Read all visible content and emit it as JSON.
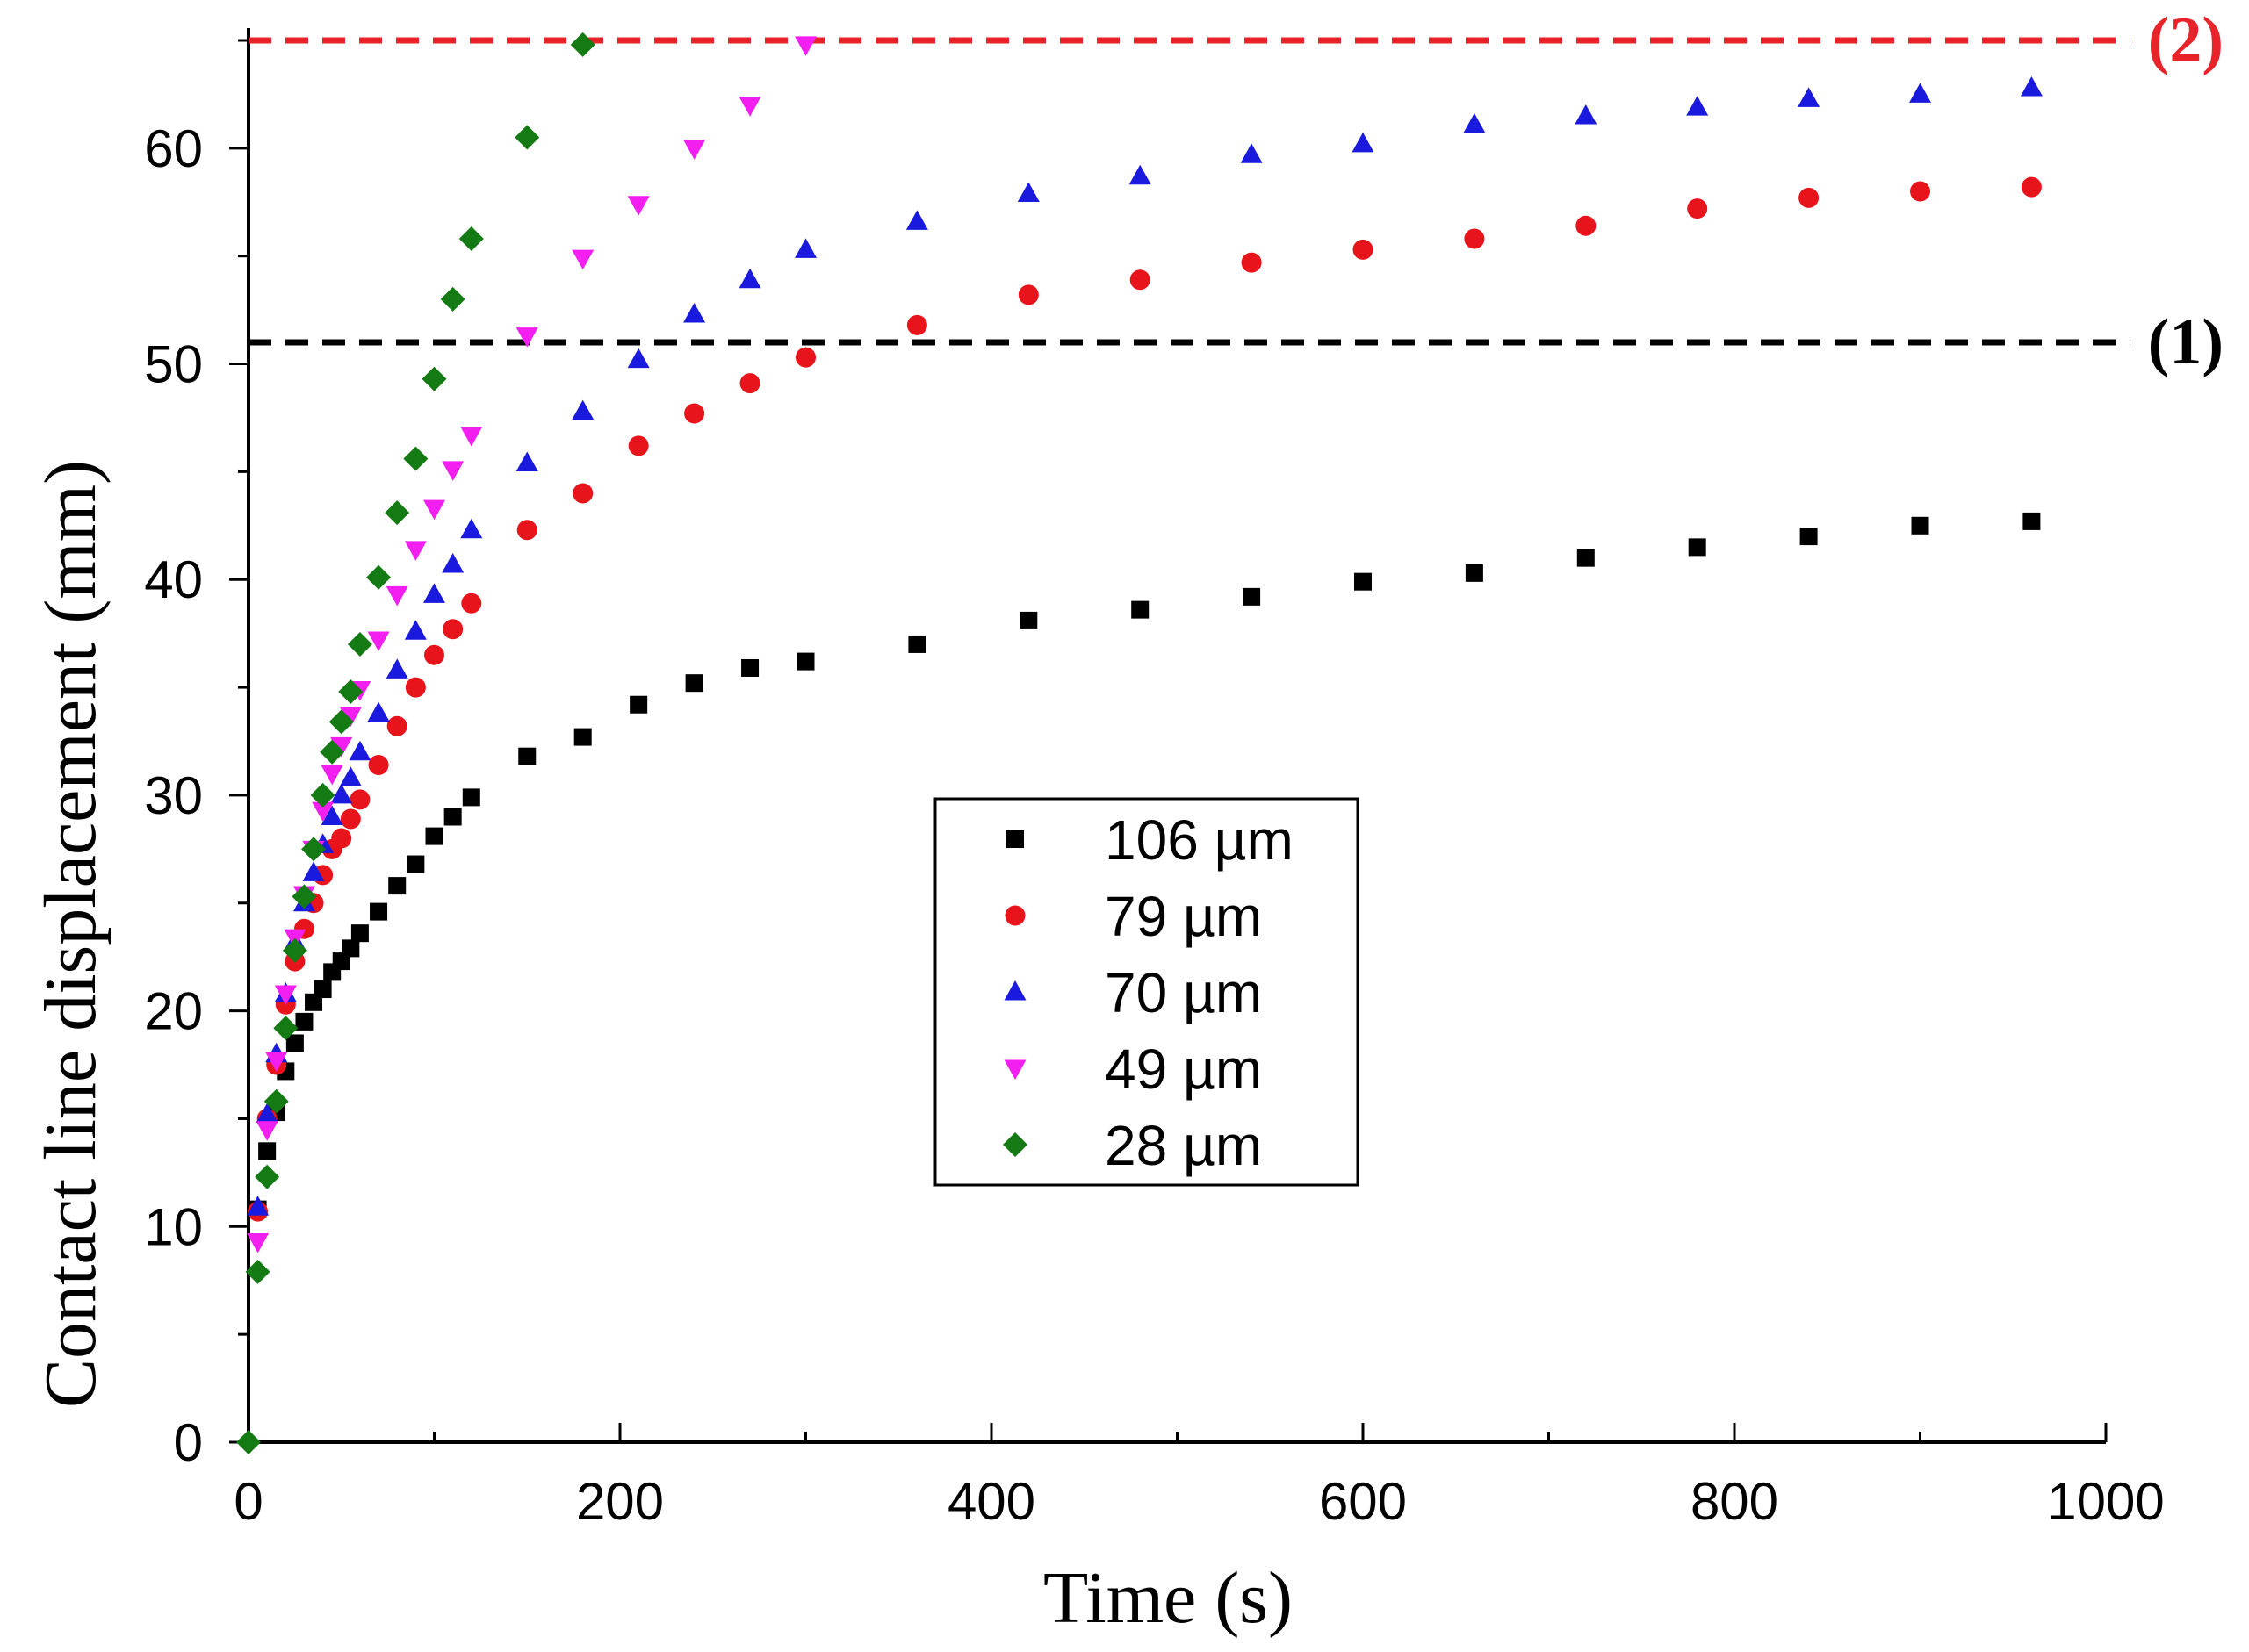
{
  "chart_data": {
    "type": "scatter",
    "title": "",
    "xlabel": "Time (s)",
    "ylabel": "Contact line displacement  (mm)",
    "xlim": [
      0,
      1000
    ],
    "ylim": [
      0,
      65
    ],
    "xticks": [
      0,
      200,
      400,
      600,
      800,
      1000
    ],
    "yticks": [
      0,
      10,
      20,
      30,
      40,
      50,
      60
    ],
    "xtick_labels": [
      "0",
      "200",
      "400",
      "600",
      "800",
      "1000"
    ],
    "ytick_labels": [
      "0",
      "10",
      "20",
      "30",
      "40",
      "50",
      "60"
    ],
    "grid": false,
    "legend_position": "center",
    "reference_lines": [
      {
        "label": "(1)",
        "y": 51,
        "color": "#000000"
      },
      {
        "label": "(2)",
        "y": 65,
        "color": "#e8242a"
      }
    ],
    "series": [
      {
        "name": "106 µm",
        "marker": "square",
        "color": "#000000",
        "x": [
          5,
          10,
          15,
          20,
          25,
          30,
          35,
          40,
          45,
          50,
          55,
          60,
          70,
          80,
          90,
          100,
          110,
          120,
          150,
          180,
          210,
          240,
          270,
          300,
          360,
          420,
          480,
          540,
          600,
          660,
          720,
          780,
          840,
          900,
          960
        ],
        "y": [
          10.8,
          13.5,
          15.3,
          17.2,
          18.5,
          19.5,
          20.4,
          21.0,
          21.8,
          22.3,
          22.9,
          23.6,
          24.6,
          25.8,
          26.8,
          28.1,
          29.0,
          29.9,
          31.8,
          32.7,
          34.2,
          35.2,
          35.9,
          36.2,
          37.0,
          38.1,
          38.6,
          39.2,
          39.9,
          40.3,
          41.0,
          41.5,
          42.0,
          42.5,
          42.7
        ]
      },
      {
        "name": "79 µm",
        "marker": "circle",
        "color": "#e8141c",
        "x": [
          5,
          10,
          15,
          20,
          25,
          30,
          35,
          40,
          45,
          50,
          55,
          60,
          70,
          80,
          90,
          100,
          110,
          120,
          150,
          180,
          210,
          240,
          270,
          300,
          360,
          420,
          480,
          540,
          600,
          660,
          720,
          780,
          840,
          900,
          960
        ],
        "y": [
          10.7,
          15.0,
          17.5,
          20.3,
          22.3,
          23.8,
          25.0,
          26.3,
          27.5,
          28.0,
          28.9,
          29.8,
          31.4,
          33.2,
          35.0,
          36.5,
          37.7,
          38.9,
          42.3,
          44.0,
          46.2,
          47.7,
          49.1,
          50.3,
          51.8,
          53.2,
          53.9,
          54.7,
          55.3,
          55.8,
          56.4,
          57.2,
          57.7,
          58.0,
          58.2
        ]
      },
      {
        "name": "70 µm",
        "marker": "triangle-up",
        "color": "#1a1adf",
        "x": [
          5,
          10,
          15,
          20,
          25,
          30,
          35,
          40,
          45,
          50,
          55,
          60,
          70,
          80,
          90,
          100,
          110,
          120,
          150,
          180,
          210,
          240,
          270,
          300,
          360,
          420,
          480,
          540,
          600,
          660,
          720,
          780,
          840,
          900,
          960
        ],
        "y": [
          10.9,
          15.2,
          18.0,
          20.8,
          23.2,
          25.0,
          26.4,
          27.7,
          29.0,
          30.0,
          30.8,
          32.0,
          33.8,
          35.8,
          37.6,
          39.3,
          40.7,
          42.3,
          45.4,
          47.8,
          50.2,
          52.3,
          53.9,
          55.3,
          56.6,
          57.9,
          58.7,
          59.7,
          60.2,
          61.1,
          61.5,
          61.9,
          62.3,
          62.5,
          62.8
        ]
      },
      {
        "name": "49 µm",
        "marker": "triangle-down",
        "color": "#f21ff0",
        "x": [
          5,
          10,
          15,
          20,
          25,
          30,
          35,
          40,
          45,
          50,
          55,
          60,
          70,
          80,
          90,
          100,
          110,
          120,
          150,
          180,
          210,
          240,
          270,
          300
        ],
        "y": [
          9.3,
          14.5,
          17.7,
          20.8,
          23.4,
          25.4,
          27.5,
          29.3,
          31.0,
          32.3,
          33.7,
          34.9,
          37.2,
          39.3,
          41.4,
          43.3,
          45.1,
          46.7,
          51.3,
          54.9,
          57.4,
          60.0,
          62.0,
          64.8
        ]
      },
      {
        "name": "28 µm",
        "marker": "diamond",
        "color": "#147a14",
        "x": [
          0,
          5,
          10,
          15,
          20,
          25,
          30,
          35,
          40,
          45,
          50,
          55,
          60,
          70,
          80,
          90,
          100,
          110,
          120,
          150,
          180
        ],
        "y": [
          0.0,
          7.9,
          12.3,
          15.8,
          19.2,
          22.8,
          25.3,
          27.5,
          30.0,
          32.0,
          33.4,
          34.8,
          37.0,
          40.1,
          43.1,
          45.6,
          49.3,
          53.0,
          55.8,
          60.5,
          64.8
        ]
      }
    ]
  }
}
